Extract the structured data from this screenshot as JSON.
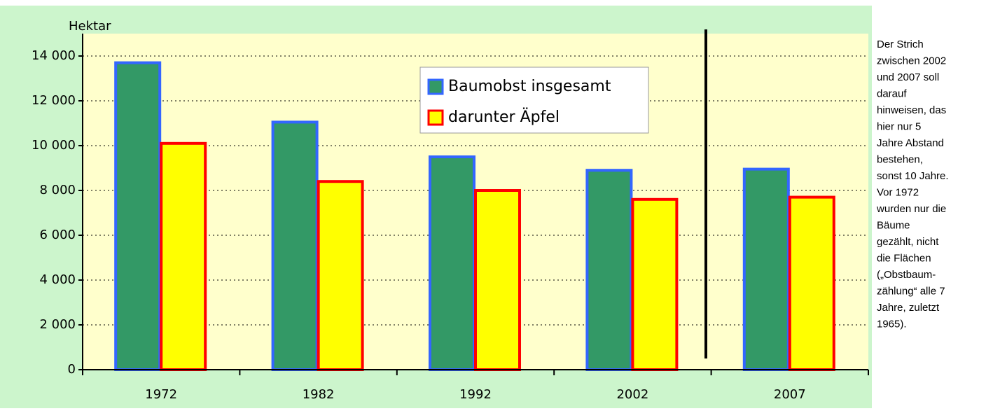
{
  "chart_data": {
    "type": "bar",
    "y_axis_label": "Hektar",
    "categories": [
      "1972",
      "1982",
      "1992",
      "2002",
      "2007"
    ],
    "series": [
      {
        "name": "Baumobst insgesamt",
        "color": "#339966",
        "border": "#3366ff",
        "values": [
          13700,
          11050,
          9500,
          8900,
          8950
        ]
      },
      {
        "name": "darunter Äpfel",
        "color": "#ffff00",
        "border": "#ff0000",
        "values": [
          10100,
          8400,
          8000,
          7600,
          7700
        ]
      }
    ],
    "ylim": [
      0,
      15000
    ],
    "yticks": [
      0,
      {
        "value": 2000,
        "label": "2 000"
      },
      {
        "value": 4000,
        "label": "4 000"
      },
      {
        "value": 6000,
        "label": "6 000"
      },
      {
        "value": 8000,
        "label": "8 000"
      },
      {
        "value": 10000,
        "label": "10 000"
      },
      {
        "value": 12000,
        "label": "12 000"
      },
      {
        "value": 14000,
        "label": "14 000"
      }
    ],
    "grid": true,
    "note": [
      "Der Strich",
      "zwischen 2002",
      "und 2007 soll",
      "darauf",
      "hinweisen, das",
      "hier nur 5",
      "Jahre Abstand",
      "bestehen,",
      "sonst 10 Jahre.",
      "Vor 1972",
      "wurden nur die",
      "Bäume",
      "gezählt, nicht",
      "die Flächen",
      "(„Obstbaum-",
      "zählung“ alle 7",
      "Jahre, zuletzt",
      "1965)."
    ]
  }
}
